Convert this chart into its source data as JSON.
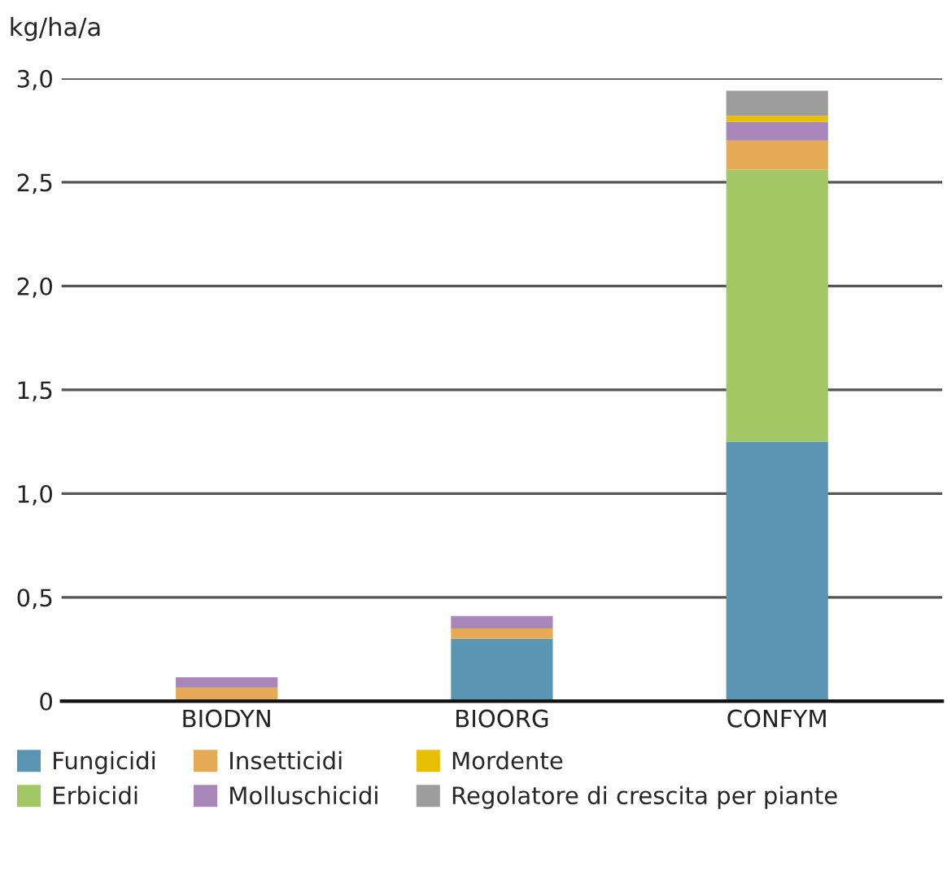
{
  "chart_data": {
    "type": "bar",
    "stacked": true,
    "ylabel": "kg/ha/a",
    "categories": [
      "BIODYN",
      "BIOORG",
      "CONFYM"
    ],
    "series": [
      {
        "name": "Fungicidi",
        "color": "#5a95b4",
        "values": [
          0,
          0.3,
          1.25
        ]
      },
      {
        "name": "Erbicidi",
        "color": "#a2c866",
        "values": [
          0,
          0,
          1.31
        ]
      },
      {
        "name": "Insetticidi",
        "color": "#e6aa55",
        "values": [
          0.065,
          0.05,
          0.14
        ]
      },
      {
        "name": "Molluschicidi",
        "color": "#a986ba",
        "values": [
          0.05,
          0.06,
          0.09
        ]
      },
      {
        "name": "Mordente",
        "color": "#e6c000",
        "values": [
          0,
          0,
          0.03
        ]
      },
      {
        "name": "Regolatore di crescita per piante",
        "color": "#9c9d9c",
        "values": [
          0,
          0,
          0.12
        ]
      }
    ],
    "ylim": [
      0,
      3.0
    ],
    "yticks": [
      {
        "value": 0,
        "label": "0"
      },
      {
        "value": 0.5,
        "label": "0,5"
      },
      {
        "value": 1.0,
        "label": "1,0"
      },
      {
        "value": 1.5,
        "label": "1,5"
      },
      {
        "value": 2.0,
        "label": "2,0"
      },
      {
        "value": 2.5,
        "label": "2,5"
      },
      {
        "value": 3.0,
        "label": "3,0"
      }
    ],
    "grid": "y",
    "legend": "bottom"
  }
}
